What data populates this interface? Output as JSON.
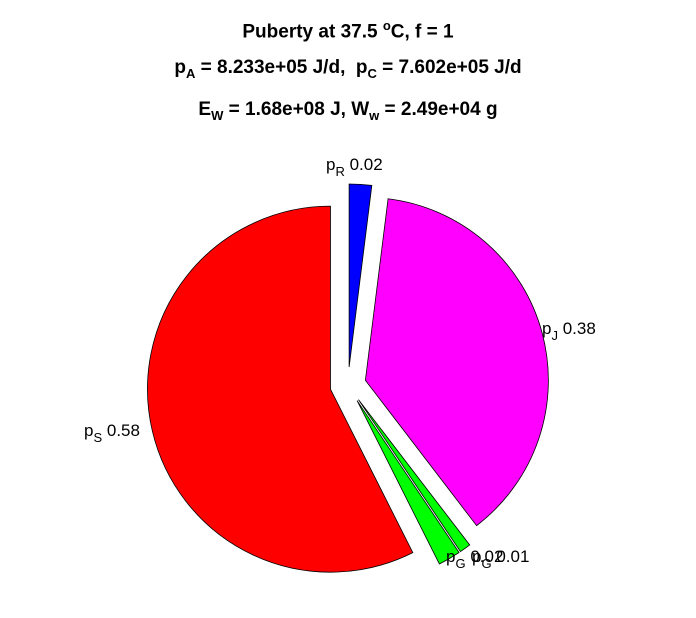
{
  "chart_data": {
    "type": "pie",
    "title_lines": [
      [
        "Puberty at 37.5 ",
        {
          "sup": "o"
        },
        "C, f = 1"
      ],
      [
        {
          "t": "p"
        },
        {
          "sub": "A"
        },
        " = 8.233e+05 J/d,  p",
        {
          "sub": "C"
        },
        " = 7.602e+05 J/d"
      ],
      [
        {
          "t": "E"
        },
        {
          "sub": "W"
        },
        " = 1.68e+08 J, W",
        {
          "sub": "w"
        },
        " = 2.49e+04 g"
      ]
    ],
    "slices": [
      {
        "symbol": "p",
        "sub": "R",
        "value": 0.02,
        "label_value": "0.02",
        "color": "#0000ff"
      },
      {
        "symbol": "p",
        "sub": "J",
        "value": 0.38,
        "label_value": "0.38",
        "color": "#ff00ff"
      },
      {
        "symbol": "p",
        "sub": "G",
        "value": 0.01,
        "label_value": "0.01",
        "color": "#00ff00"
      },
      {
        "symbol": "p",
        "sub": "G",
        "value": 0.02,
        "label_value": "0.02",
        "color": "#00ff00"
      },
      {
        "symbol": "p",
        "sub": "S",
        "value": 0.58,
        "label_value": "0.58",
        "color": "#ff0000"
      }
    ],
    "start_direction": "top",
    "direction": "clockwise",
    "exploded": true
  }
}
